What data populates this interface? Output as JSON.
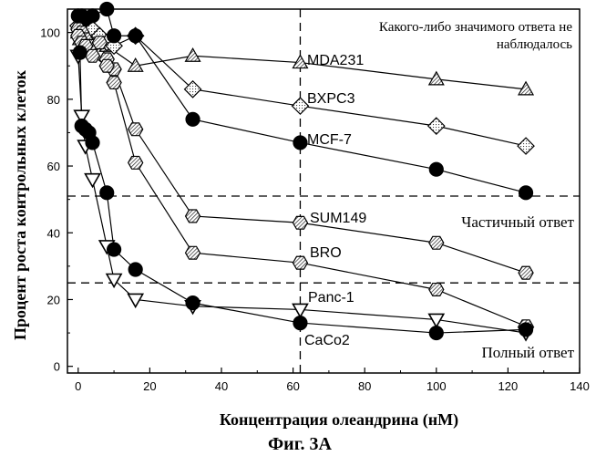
{
  "chart_data": {
    "type": "line",
    "xlabel": "Концентрация олеандрина (нМ)",
    "ylabel": "Процент роста контрольных клеток",
    "caption": "Фиг. 3А",
    "xlim": [
      -3,
      140
    ],
    "ylim": [
      -2,
      107
    ],
    "xticks": [
      0,
      20,
      40,
      60,
      80,
      100,
      120,
      140
    ],
    "yticks": [
      0,
      20,
      40,
      60,
      80,
      100
    ],
    "grid": false,
    "legend": "inline labels next to curves",
    "reference_lines": {
      "vertical_x": 62,
      "horizontal_y": [
        51,
        25
      ]
    },
    "annotations": {
      "no_response_line1": "Какого-либо значимого ответа не",
      "no_response_line2": "наблюдалось",
      "partial_response": "Частичный ответ",
      "complete_response": "Полный ответ"
    },
    "series": [
      {
        "name": "MDA231",
        "marker": "triangle-up",
        "x": [
          0,
          0.5,
          1,
          2,
          4,
          8,
          16,
          32,
          62,
          100,
          125
        ],
        "y": [
          100,
          98,
          101,
          100,
          98,
          96,
          90,
          93,
          91,
          86,
          83
        ]
      },
      {
        "name": "BXPC3",
        "marker": "diamond",
        "x": [
          0,
          1,
          2,
          4,
          6,
          8,
          10,
          16,
          32,
          62,
          100,
          125
        ],
        "y": [
          102,
          100,
          99,
          101,
          99,
          97,
          96,
          99,
          83,
          78,
          72,
          66
        ]
      },
      {
        "name": "MCF-7",
        "marker": "circle",
        "x": [
          0,
          1,
          2,
          4,
          8,
          10,
          16,
          32,
          62,
          100,
          125
        ],
        "y": [
          105,
          105,
          104,
          105,
          107,
          99,
          99,
          74,
          67,
          59,
          52
        ]
      },
      {
        "name": "SUM149",
        "marker": "hexagon",
        "x": [
          0,
          1,
          2,
          4,
          6,
          8,
          10,
          16,
          32,
          62,
          100,
          125
        ],
        "y": [
          101,
          100,
          98,
          96,
          97,
          92,
          89,
          71,
          45,
          43,
          37,
          28
        ]
      },
      {
        "name": "BRO",
        "marker": "hexagon",
        "x": [
          0,
          1,
          2,
          4,
          8,
          10,
          16,
          32,
          62,
          100,
          125
        ],
        "y": [
          99,
          97,
          96,
          93,
          90,
          85,
          61,
          34,
          31,
          23,
          12
        ]
      },
      {
        "name": "Panc-1",
        "marker": "triangle-down",
        "x": [
          0,
          1,
          2,
          4,
          8,
          10,
          16,
          32,
          62,
          100,
          125
        ],
        "y": [
          93,
          75,
          66,
          56,
          36,
          26,
          20,
          18,
          17,
          14,
          10
        ]
      },
      {
        "name": "CaCo2",
        "marker": "circle",
        "x": [
          0.5,
          1,
          2,
          3,
          4,
          8,
          10,
          16,
          32,
          62,
          100,
          125
        ],
        "y": [
          94,
          72,
          71,
          70,
          67,
          52,
          35,
          29,
          19,
          13,
          10,
          11
        ]
      }
    ]
  }
}
